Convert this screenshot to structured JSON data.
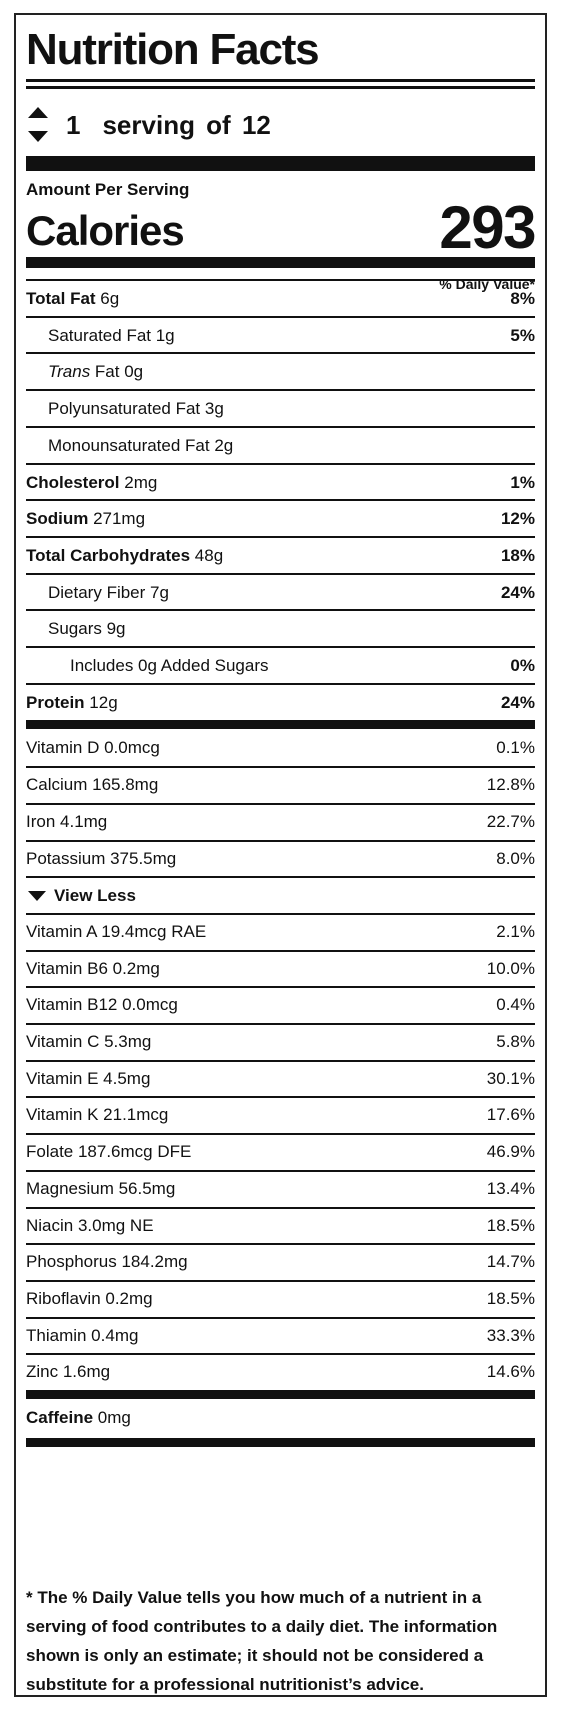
{
  "header": {
    "title": "Nutrition Facts",
    "serving_count": "1",
    "serving_text": "serving of 12"
  },
  "calories": {
    "amount_per_serving": "Amount Per Serving",
    "label": "Calories",
    "value": "293"
  },
  "daily_value_header": "% Daily Value*",
  "main_nutrients": [
    {
      "name": "Total Fat",
      "amount": " 6g",
      "dv": "8%"
    },
    {
      "name": "Saturated Fat 1g",
      "amount": "",
      "dv": "5%"
    },
    {
      "name_italic": "Trans",
      "name": " Fat 0g",
      "amount": "",
      "dv": ""
    },
    {
      "name": "Polyunsaturated Fat 3g",
      "amount": "",
      "dv": ""
    },
    {
      "name": "Monounsaturated Fat 2g",
      "amount": "",
      "dv": ""
    },
    {
      "name": "Cholesterol",
      "amount": " 2mg",
      "dv": "1%"
    },
    {
      "name": "Sodium",
      "amount": " 271mg",
      "dv": "12%"
    },
    {
      "name": "Total Carbohydrates",
      "amount": " 48g",
      "dv": "18%"
    },
    {
      "name": "Dietary Fiber 7g",
      "amount": "",
      "dv": "24%"
    },
    {
      "name": "Sugars 9g",
      "amount": "",
      "dv": ""
    },
    {
      "name": "Includes 0g Added Sugars",
      "amount": "",
      "dv": "0%"
    },
    {
      "name": "Protein",
      "amount": " 12g",
      "dv": "24%"
    }
  ],
  "micronutrients_primary": [
    {
      "name": "Vitamin D 0.0mcg",
      "dv": "0.1%"
    },
    {
      "name": "Calcium 165.8mg",
      "dv": "12.8%"
    },
    {
      "name": "Iron 4.1mg",
      "dv": "22.7%"
    },
    {
      "name": "Potassium 375.5mg",
      "dv": "8.0%"
    }
  ],
  "view_toggle": {
    "label": "View Less",
    "icon": "caret-down-icon"
  },
  "micronutrients_extra": [
    {
      "name": "Vitamin A 19.4mcg RAE",
      "dv": "2.1%"
    },
    {
      "name": "Vitamin B6 0.2mg",
      "dv": "10.0%"
    },
    {
      "name": "Vitamin B12 0.0mcg",
      "dv": "0.4%"
    },
    {
      "name": "Vitamin C 5.3mg",
      "dv": "5.8%"
    },
    {
      "name": "Vitamin E 4.5mg",
      "dv": "30.1%"
    },
    {
      "name": "Vitamin K 21.1mcg",
      "dv": "17.6%"
    },
    {
      "name": "Folate 187.6mcg DFE",
      "dv": "46.9%"
    },
    {
      "name": "Magnesium 56.5mg",
      "dv": "13.4%"
    },
    {
      "name": "Niacin 3.0mg NE",
      "dv": "18.5%"
    },
    {
      "name": "Phosphorus 184.2mg",
      "dv": "14.7%"
    },
    {
      "name": "Riboflavin 0.2mg",
      "dv": "18.5%"
    },
    {
      "name": "Thiamin 0.4mg",
      "dv": "33.3%"
    },
    {
      "name": "Zinc 1.6mg",
      "dv": "14.6%"
    }
  ],
  "caffeine": {
    "name": "Caffeine",
    "amount": " 0mg"
  },
  "footnote": "* The % Daily Value tells you how much of a nutrient in a serving of food contributes to a daily diet. The information shown is only an estimate; it should not be considered a substitute for a professional nutritionist’s advice.",
  "colors": {
    "text": "#111111",
    "border": "#222222",
    "background": "#ffffff"
  }
}
